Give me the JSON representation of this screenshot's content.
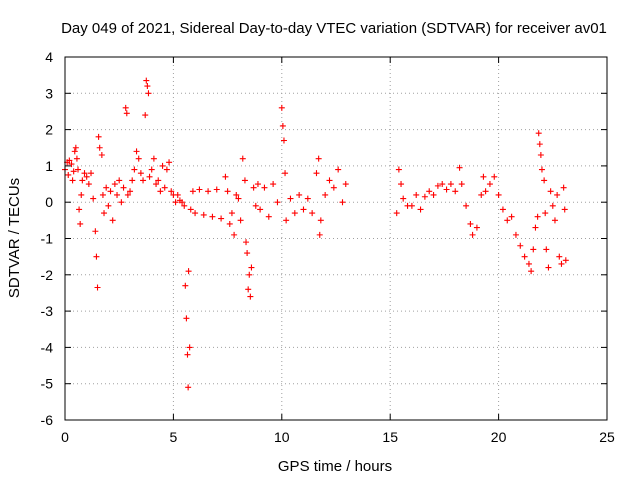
{
  "chart_data": {
    "type": "scatter",
    "title": "Day 049 of 2021, Sidereal Day-to-day VTEC variation (SDTVAR) for receiver av01",
    "xlabel": "GPS time / hours",
    "ylabel": "SDTVAR / TECUs",
    "xlim": [
      0,
      25
    ],
    "ylim": [
      -6,
      4
    ],
    "xticks": [
      0,
      5,
      10,
      15,
      20,
      25
    ],
    "yticks": [
      4,
      3,
      2,
      1,
      0,
      -1,
      -2,
      -3,
      -4,
      -5,
      -6
    ],
    "grid": true,
    "marker": "+",
    "color": "#ff0000",
    "series": [
      {
        "name": "av01",
        "points": [
          [
            0.0,
            0.9
          ],
          [
            0.1,
            1.1
          ],
          [
            0.15,
            0.75
          ],
          [
            0.2,
            1.15
          ],
          [
            0.3,
            1.05
          ],
          [
            0.35,
            0.6
          ],
          [
            0.4,
            0.85
          ],
          [
            0.45,
            1.4
          ],
          [
            0.5,
            1.5
          ],
          [
            0.55,
            1.2
          ],
          [
            0.6,
            0.9
          ],
          [
            0.65,
            -0.2
          ],
          [
            0.7,
            -0.6
          ],
          [
            0.75,
            0.2
          ],
          [
            0.8,
            0.6
          ],
          [
            0.9,
            0.8
          ],
          [
            1.0,
            0.7
          ],
          [
            1.1,
            0.5
          ],
          [
            1.2,
            0.8
          ],
          [
            1.3,
            0.1
          ],
          [
            1.4,
            -0.8
          ],
          [
            1.45,
            -1.5
          ],
          [
            1.5,
            -2.35
          ],
          [
            1.55,
            1.8
          ],
          [
            1.6,
            1.5
          ],
          [
            1.7,
            1.3
          ],
          [
            1.75,
            0.2
          ],
          [
            1.8,
            -0.3
          ],
          [
            1.9,
            0.4
          ],
          [
            2.0,
            -0.1
          ],
          [
            2.1,
            0.3
          ],
          [
            2.2,
            -0.5
          ],
          [
            2.3,
            0.5
          ],
          [
            2.4,
            0.2
          ],
          [
            2.5,
            0.6
          ],
          [
            2.6,
            0.0
          ],
          [
            2.7,
            0.4
          ],
          [
            2.8,
            2.6
          ],
          [
            2.85,
            2.45
          ],
          [
            2.9,
            0.2
          ],
          [
            3.0,
            0.3
          ],
          [
            3.1,
            0.6
          ],
          [
            3.2,
            0.9
          ],
          [
            3.3,
            1.4
          ],
          [
            3.4,
            1.2
          ],
          [
            3.5,
            0.8
          ],
          [
            3.6,
            0.6
          ],
          [
            3.7,
            2.4
          ],
          [
            3.75,
            3.35
          ],
          [
            3.8,
            3.2
          ],
          [
            3.85,
            3.0
          ],
          [
            3.9,
            0.7
          ],
          [
            4.0,
            0.9
          ],
          [
            4.1,
            1.2
          ],
          [
            4.2,
            0.5
          ],
          [
            4.3,
            0.6
          ],
          [
            4.4,
            0.3
          ],
          [
            4.5,
            1.0
          ],
          [
            4.6,
            0.4
          ],
          [
            4.7,
            0.9
          ],
          [
            4.8,
            1.1
          ],
          [
            4.9,
            0.3
          ],
          [
            5.0,
            0.2
          ],
          [
            5.1,
            0.0
          ],
          [
            5.2,
            0.2
          ],
          [
            5.3,
            0.05
          ],
          [
            5.4,
            0.0
          ],
          [
            5.5,
            -0.1
          ],
          [
            5.55,
            -2.3
          ],
          [
            5.6,
            -3.2
          ],
          [
            5.65,
            -4.2
          ],
          [
            5.68,
            -5.1
          ],
          [
            5.7,
            -1.9
          ],
          [
            5.75,
            -4.0
          ],
          [
            5.8,
            -0.2
          ],
          [
            5.9,
            0.3
          ],
          [
            6.0,
            -0.3
          ],
          [
            6.2,
            0.35
          ],
          [
            6.4,
            -0.35
          ],
          [
            6.6,
            0.3
          ],
          [
            6.8,
            -0.4
          ],
          [
            7.0,
            0.35
          ],
          [
            7.2,
            -0.45
          ],
          [
            7.4,
            0.7
          ],
          [
            7.5,
            0.3
          ],
          [
            7.6,
            -0.6
          ],
          [
            7.7,
            -0.3
          ],
          [
            7.8,
            -0.9
          ],
          [
            7.9,
            0.2
          ],
          [
            8.0,
            0.1
          ],
          [
            8.1,
            -0.5
          ],
          [
            8.2,
            1.2
          ],
          [
            8.3,
            0.6
          ],
          [
            8.35,
            -1.1
          ],
          [
            8.4,
            -1.4
          ],
          [
            8.45,
            -2.4
          ],
          [
            8.5,
            -2.0
          ],
          [
            8.55,
            -2.6
          ],
          [
            8.6,
            -1.8
          ],
          [
            8.7,
            0.4
          ],
          [
            8.8,
            -0.1
          ],
          [
            8.9,
            0.5
          ],
          [
            9.0,
            -0.2
          ],
          [
            9.2,
            0.4
          ],
          [
            9.4,
            -0.4
          ],
          [
            9.6,
            0.5
          ],
          [
            9.8,
            0.0
          ],
          [
            10.0,
            2.6
          ],
          [
            10.05,
            2.1
          ],
          [
            10.1,
            1.7
          ],
          [
            10.15,
            0.8
          ],
          [
            10.2,
            -0.5
          ],
          [
            10.4,
            0.1
          ],
          [
            10.6,
            -0.3
          ],
          [
            10.8,
            0.2
          ],
          [
            11.0,
            -0.2
          ],
          [
            11.2,
            0.1
          ],
          [
            11.4,
            -0.3
          ],
          [
            11.6,
            0.8
          ],
          [
            11.7,
            1.2
          ],
          [
            11.75,
            -0.9
          ],
          [
            11.8,
            -0.5
          ],
          [
            12.0,
            0.2
          ],
          [
            12.2,
            0.6
          ],
          [
            12.4,
            0.4
          ],
          [
            12.6,
            0.9
          ],
          [
            12.8,
            0.0
          ],
          [
            12.95,
            0.5
          ],
          [
            15.3,
            -0.3
          ],
          [
            15.4,
            0.9
          ],
          [
            15.5,
            0.5
          ],
          [
            15.6,
            0.1
          ],
          [
            15.8,
            -0.1
          ],
          [
            16.0,
            -0.1
          ],
          [
            16.2,
            0.2
          ],
          [
            16.4,
            -0.2
          ],
          [
            16.6,
            0.15
          ],
          [
            16.8,
            0.3
          ],
          [
            17.0,
            0.2
          ],
          [
            17.2,
            0.45
          ],
          [
            17.4,
            0.5
          ],
          [
            17.6,
            0.35
          ],
          [
            17.8,
            0.5
          ],
          [
            18.0,
            0.3
          ],
          [
            18.2,
            0.95
          ],
          [
            18.3,
            0.5
          ],
          [
            18.5,
            -0.1
          ],
          [
            18.7,
            -0.6
          ],
          [
            18.8,
            -0.9
          ],
          [
            19.0,
            -0.7
          ],
          [
            19.2,
            0.2
          ],
          [
            19.3,
            0.7
          ],
          [
            19.4,
            0.3
          ],
          [
            19.6,
            0.5
          ],
          [
            19.8,
            0.7
          ],
          [
            20.0,
            0.2
          ],
          [
            20.2,
            -0.2
          ],
          [
            20.4,
            -0.5
          ],
          [
            20.6,
            -0.4
          ],
          [
            20.8,
            -0.9
          ],
          [
            21.0,
            -1.2
          ],
          [
            21.2,
            -1.5
          ],
          [
            21.4,
            -1.7
          ],
          [
            21.5,
            -1.9
          ],
          [
            21.6,
            -1.3
          ],
          [
            21.7,
            -0.7
          ],
          [
            21.8,
            -0.4
          ],
          [
            21.85,
            1.9
          ],
          [
            21.9,
            1.6
          ],
          [
            21.95,
            1.3
          ],
          [
            22.0,
            0.9
          ],
          [
            22.1,
            0.6
          ],
          [
            22.15,
            -0.3
          ],
          [
            22.2,
            -1.3
          ],
          [
            22.3,
            -1.8
          ],
          [
            22.4,
            0.3
          ],
          [
            22.5,
            -0.1
          ],
          [
            22.6,
            -0.5
          ],
          [
            22.7,
            0.2
          ],
          [
            22.8,
            -1.5
          ],
          [
            22.9,
            -1.7
          ],
          [
            23.0,
            0.4
          ],
          [
            23.05,
            -0.2
          ],
          [
            23.1,
            -1.6
          ]
        ]
      }
    ]
  }
}
